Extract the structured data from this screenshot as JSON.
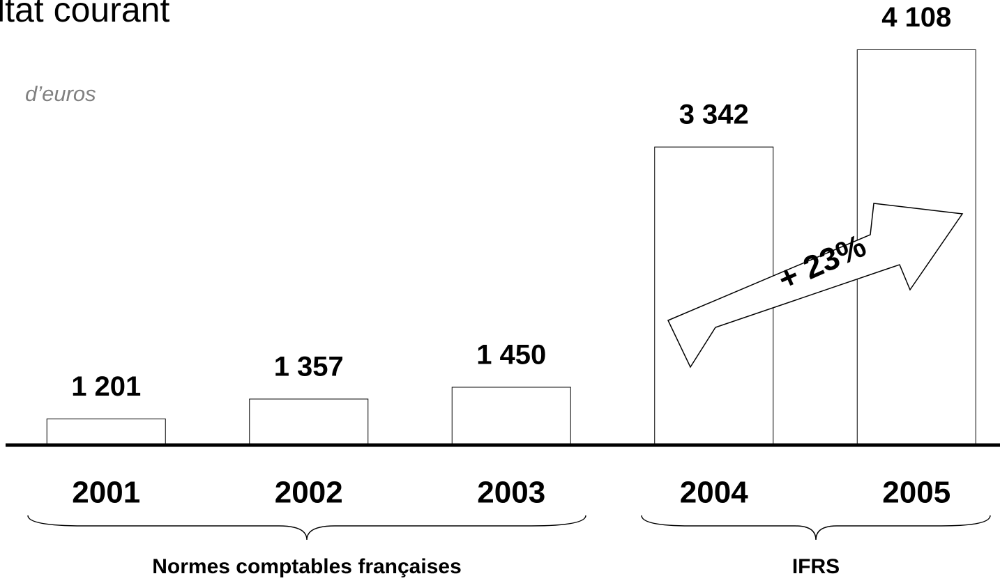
{
  "chart_data": {
    "type": "bar",
    "title": "ltat courant",
    "subtitle": "d’euros",
    "categories": [
      "2001",
      "2002",
      "2003",
      "2004",
      "2005"
    ],
    "values": [
      1201,
      1357,
      1450,
      3342,
      4108
    ],
    "value_labels": [
      "1 201",
      "1 357",
      "1 450",
      "3 342",
      "4 108"
    ],
    "color": "#ffffff",
    "ylim": [
      1000,
      4500
    ],
    "annotation": "+ 23%",
    "groups": [
      "Normes comptables françaises",
      "IFRS"
    ]
  }
}
